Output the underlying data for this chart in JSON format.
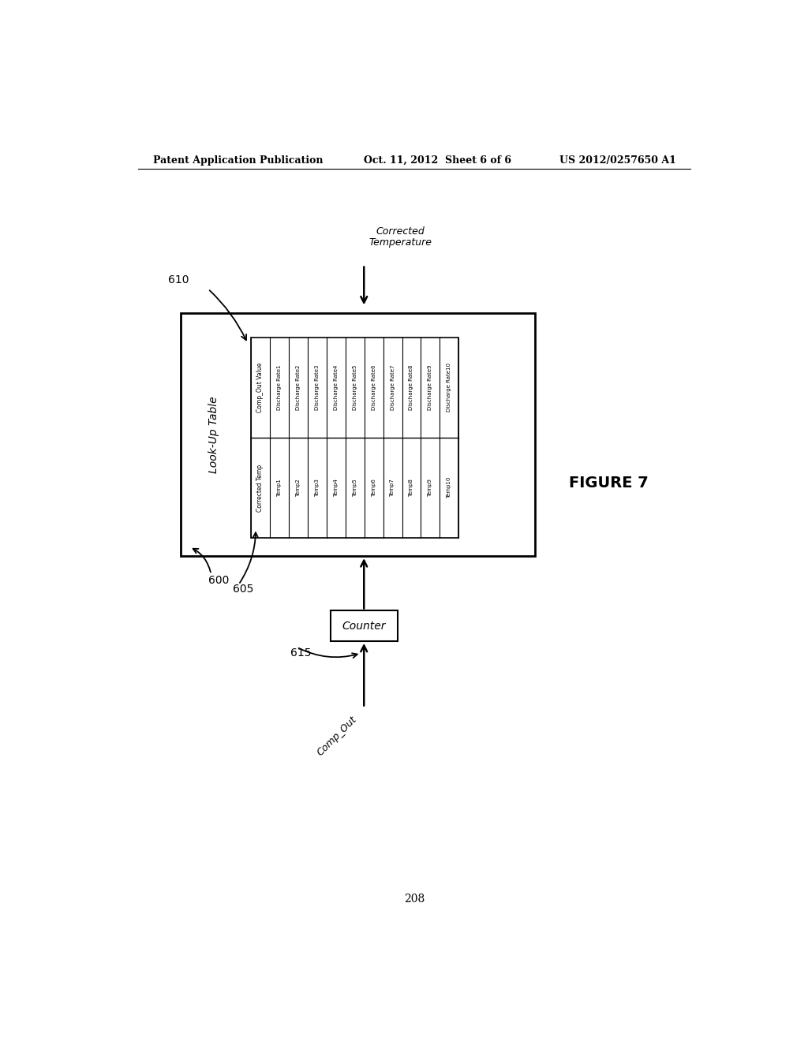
{
  "bg_color": "#ffffff",
  "header_text_left": "Patent Application Publication",
  "header_text_mid": "Oct. 11, 2012  Sheet 6 of 6",
  "header_text_right": "US 2012/0257650 A1",
  "figure_label": "FIGURE 7",
  "page_number": "208",
  "outer_box_label": "Look-Up Table",
  "outer_box_label_num": "610",
  "counter_label": "Counter",
  "comp_out_label": "Comp_Out",
  "corrected_temp_label": "Corrected\nTemperature",
  "label_600": "600",
  "label_605": "605",
  "label_615": "615",
  "table_col1_header": "Comp_Out Value",
  "table_col2_header": "Corrected Temp",
  "table_col1_rows": [
    "Discharge Rate1",
    "Discharge Rate2",
    "Discharge Rate3",
    "Discharge Rate4",
    "Discharge Rate5",
    "Discharge Rate6",
    "Discharge Rate7",
    "Discharge Rate8",
    "Discharge Rate9",
    "Discharge Rate10"
  ],
  "table_col2_rows": [
    "Temp1",
    "Temp2",
    "Temp3",
    "Temp4",
    "Temp5",
    "Temp6",
    "Temp7",
    "Temp8",
    "Temp9",
    "Temp10"
  ]
}
